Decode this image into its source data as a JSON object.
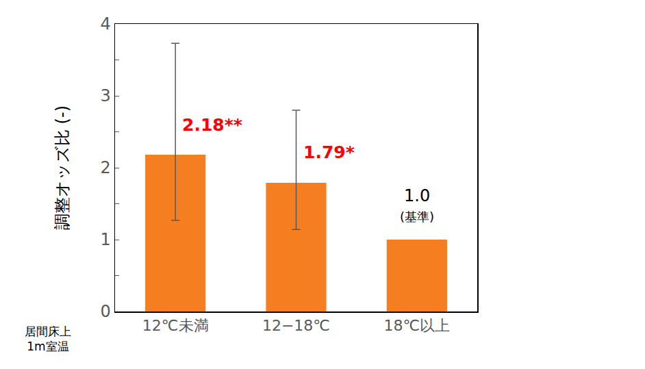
{
  "chart_data": {
    "type": "bar",
    "y_label": "調整オッズ比 (-)",
    "x_label": "居間床上\n1m室温",
    "categories": [
      "12℃未満",
      "12−18℃",
      "18℃以上"
    ],
    "values": [
      2.18,
      1.79,
      1.0
    ],
    "value_labels": [
      "2.18**",
      "1.79*",
      "1.0"
    ],
    "ci_lower": [
      1.27,
      1.14,
      null
    ],
    "ci_upper": [
      3.73,
      2.8,
      null
    ],
    "annotations": [
      {
        "category": "18℃以上",
        "text": "(基準)"
      }
    ],
    "color": "#f47e20",
    "data_labels": true,
    "ylim": [
      0,
      4
    ],
    "yticks": [
      0,
      1,
      2,
      3,
      4
    ],
    "grid": false
  }
}
